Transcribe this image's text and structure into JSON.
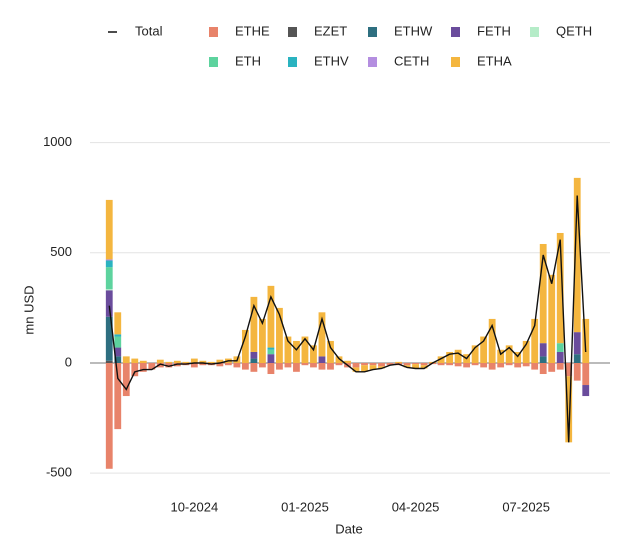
{
  "chart_data": {
    "type": "bar",
    "x_label": "Date",
    "y_label": "mn USD",
    "categories": [
      null,
      null,
      null,
      null,
      null,
      null,
      null,
      null,
      null,
      null,
      "10-2024",
      null,
      null,
      null,
      null,
      null,
      null,
      null,
      null,
      null,
      null,
      null,
      null,
      "01-2025",
      null,
      null,
      null,
      null,
      null,
      null,
      null,
      null,
      null,
      null,
      null,
      null,
      "04-2025",
      null,
      null,
      null,
      null,
      null,
      null,
      null,
      null,
      null,
      null,
      null,
      null,
      "07-2025",
      null,
      null,
      null,
      null,
      null,
      null,
      null
    ],
    "ylim": [
      -540,
      1030
    ],
    "yticks": [
      -500,
      0,
      500,
      1000
    ],
    "grid": true,
    "stacked": true,
    "series": [
      {
        "name": "Total",
        "type": "line",
        "color": "#111111",
        "values": [
          260,
          -70,
          -120,
          -40,
          -30,
          -30,
          -5,
          -15,
          -5,
          -5,
          0,
          0,
          -5,
          0,
          10,
          10,
          120,
          260,
          180,
          300,
          220,
          100,
          60,
          110,
          60,
          200,
          70,
          20,
          -10,
          -40,
          -40,
          -30,
          -25,
          -10,
          -5,
          -20,
          -25,
          -25,
          0,
          20,
          40,
          45,
          20,
          70,
          100,
          170,
          40,
          70,
          30,
          85,
          170,
          490,
          360,
          560,
          -360,
          760,
          50
        ]
      },
      {
        "name": "ETHE",
        "color": "#e8836a",
        "values": [
          -480,
          -300,
          -150,
          -60,
          -40,
          -30,
          -20,
          -20,
          -15,
          -10,
          -20,
          -10,
          -10,
          -15,
          -10,
          -20,
          -30,
          -40,
          -20,
          -50,
          -30,
          -20,
          -40,
          -10,
          -20,
          -30,
          -30,
          -10,
          -20,
          -20,
          -10,
          -10,
          -15,
          -10,
          -10,
          -10,
          -5,
          -10,
          -5,
          -10,
          -10,
          -15,
          -20,
          -10,
          -20,
          -30,
          -20,
          -10,
          -20,
          -15,
          -30,
          -50,
          -40,
          -30,
          -60,
          -80,
          -100
        ]
      },
      {
        "name": "EZET",
        "color": "#555555",
        "values": [
          10,
          0,
          0,
          0,
          0,
          0,
          0,
          0,
          0,
          0,
          0,
          0,
          0,
          0,
          0,
          0,
          0,
          0,
          0,
          0,
          0,
          0,
          0,
          0,
          0,
          0,
          0,
          0,
          0,
          0,
          0,
          0,
          0,
          0,
          0,
          0,
          0,
          0,
          0,
          0,
          0,
          0,
          0,
          0,
          0,
          0,
          0,
          0,
          0,
          0,
          0,
          0,
          0,
          0,
          0,
          0,
          0
        ]
      },
      {
        "name": "ETHW",
        "color": "#2e6f80",
        "values": [
          200,
          30,
          0,
          0,
          0,
          0,
          0,
          0,
          0,
          0,
          0,
          0,
          0,
          0,
          0,
          0,
          0,
          20,
          0,
          0,
          0,
          0,
          0,
          0,
          0,
          0,
          0,
          0,
          0,
          0,
          0,
          0,
          0,
          0,
          0,
          0,
          0,
          0,
          0,
          0,
          0,
          0,
          0,
          0,
          0,
          0,
          0,
          0,
          0,
          0,
          0,
          30,
          0,
          0,
          0,
          40,
          0
        ]
      },
      {
        "name": "FETH",
        "color": "#6a4c9c",
        "values": [
          120,
          40,
          0,
          0,
          0,
          0,
          0,
          0,
          0,
          0,
          0,
          0,
          0,
          0,
          0,
          0,
          0,
          30,
          0,
          40,
          0,
          0,
          0,
          0,
          0,
          30,
          0,
          0,
          0,
          0,
          0,
          0,
          0,
          0,
          0,
          0,
          0,
          0,
          0,
          0,
          0,
          0,
          0,
          0,
          0,
          0,
          0,
          0,
          0,
          0,
          0,
          60,
          0,
          50,
          0,
          100,
          -50
        ]
      },
      {
        "name": "QETH",
        "color": "#b5ecc8",
        "values": [
          5,
          0,
          0,
          0,
          0,
          0,
          0,
          0,
          0,
          0,
          0,
          0,
          0,
          0,
          0,
          0,
          0,
          0,
          0,
          0,
          0,
          0,
          0,
          0,
          0,
          0,
          0,
          0,
          0,
          0,
          0,
          0,
          0,
          0,
          0,
          0,
          0,
          0,
          0,
          0,
          0,
          0,
          0,
          0,
          0,
          0,
          0,
          0,
          0,
          0,
          0,
          0,
          0,
          0,
          0,
          0,
          0
        ]
      },
      {
        "name": "ETH",
        "color": "#5dd39e",
        "values": [
          100,
          50,
          0,
          0,
          0,
          0,
          0,
          0,
          0,
          0,
          0,
          0,
          0,
          0,
          0,
          0,
          0,
          0,
          0,
          20,
          0,
          0,
          0,
          0,
          0,
          0,
          0,
          0,
          0,
          0,
          0,
          0,
          0,
          0,
          0,
          0,
          0,
          0,
          0,
          0,
          0,
          0,
          0,
          0,
          0,
          0,
          0,
          0,
          0,
          0,
          0,
          0,
          0,
          40,
          0,
          0,
          0
        ]
      },
      {
        "name": "ETHV",
        "color": "#2ab3c0",
        "values": [
          30,
          10,
          0,
          0,
          0,
          0,
          0,
          0,
          0,
          0,
          0,
          0,
          0,
          0,
          0,
          0,
          0,
          0,
          0,
          10,
          0,
          0,
          0,
          0,
          0,
          0,
          0,
          0,
          0,
          0,
          0,
          0,
          0,
          0,
          0,
          0,
          0,
          0,
          0,
          0,
          0,
          0,
          0,
          0,
          0,
          0,
          0,
          0,
          0,
          0,
          0,
          0,
          0,
          0,
          0,
          0,
          0
        ]
      },
      {
        "name": "CETH",
        "color": "#b48ee0",
        "values": [
          5,
          0,
          0,
          0,
          0,
          0,
          0,
          0,
          0,
          0,
          0,
          0,
          0,
          0,
          0,
          0,
          0,
          0,
          0,
          0,
          0,
          0,
          0,
          0,
          0,
          0,
          0,
          0,
          0,
          0,
          0,
          0,
          0,
          0,
          0,
          0,
          0,
          0,
          0,
          0,
          0,
          0,
          0,
          0,
          0,
          0,
          0,
          0,
          0,
          0,
          0,
          0,
          0,
          0,
          0,
          0,
          0
        ]
      },
      {
        "name": "ETHA",
        "color": "#f4b63f",
        "values": [
          270,
          100,
          30,
          20,
          10,
          0,
          15,
          5,
          10,
          5,
          20,
          10,
          5,
          15,
          20,
          30,
          150,
          250,
          200,
          280,
          250,
          120,
          100,
          120,
          80,
          200,
          100,
          30,
          10,
          -20,
          -30,
          -20,
          -10,
          0,
          5,
          -10,
          -20,
          -15,
          5,
          30,
          50,
          60,
          40,
          80,
          120,
          200,
          60,
          80,
          50,
          100,
          200,
          450,
          400,
          500,
          -300,
          700,
          200
        ]
      }
    ]
  }
}
